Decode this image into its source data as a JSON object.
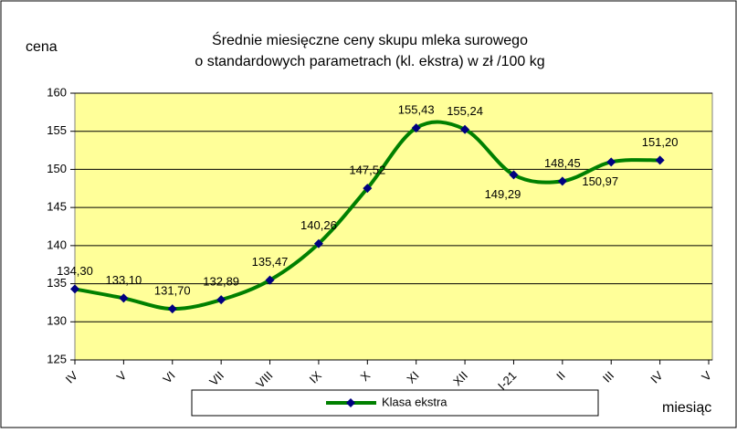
{
  "chart_data": {
    "type": "line",
    "title": [
      "Średnie miesięczne ceny skupu mleka surowego",
      "o standardowych parametrach (kl. ekstra) w zł /100 kg"
    ],
    "y_label": "cena",
    "x_label": "miesiąc",
    "categories": [
      "IV",
      "V",
      "VI",
      "VII",
      "VIII",
      "IX",
      "X",
      "XI",
      "XII",
      "I-21",
      "II",
      "III",
      "IV",
      "V"
    ],
    "series": [
      {
        "name": "Klasa ekstra",
        "color": "#008000",
        "marker_color": "#000080",
        "values": [
          134.3,
          133.1,
          131.7,
          132.89,
          135.47,
          140.26,
          147.52,
          155.43,
          155.24,
          149.29,
          148.45,
          150.97,
          151.2,
          null
        ],
        "value_labels": [
          "134,30",
          "133,10",
          "131,70",
          "132,89",
          "135,47",
          "140,26",
          "147,52",
          "155,43",
          "155,24",
          "149,29",
          "148,45",
          "150,97",
          "151,20",
          null
        ]
      }
    ],
    "ylim": [
      125,
      160
    ],
    "yticks": [
      125,
      130,
      135,
      140,
      145,
      150,
      155,
      160
    ],
    "grid": true,
    "plot_background": "#ffff99",
    "legend": "bottom"
  }
}
